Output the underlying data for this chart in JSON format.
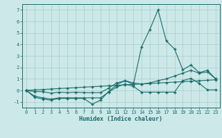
{
  "title": "",
  "xlabel": "Humidex (Indice chaleur)",
  "bg_color": "#cce8e8",
  "grid_color": "#aacccc",
  "line_color": "#1a6b6b",
  "x": [
    0,
    1,
    2,
    3,
    4,
    5,
    6,
    7,
    8,
    9,
    10,
    11,
    12,
    13,
    14,
    15,
    16,
    17,
    18,
    19,
    20,
    21,
    22,
    23
  ],
  "y_main": [
    0.0,
    -0.6,
    -0.75,
    -0.85,
    -0.7,
    -0.7,
    -0.7,
    -0.7,
    -1.2,
    -0.85,
    -0.1,
    0.5,
    0.85,
    0.5,
    3.8,
    5.3,
    7.0,
    4.3,
    3.6,
    1.8,
    2.2,
    1.55,
    1.75,
    1.0
  ],
  "y_line2": [
    0.0,
    -0.5,
    -0.65,
    -0.75,
    -0.65,
    -0.65,
    -0.65,
    -0.65,
    -0.65,
    -0.65,
    -0.15,
    0.3,
    0.55,
    0.35,
    -0.15,
    -0.15,
    -0.15,
    -0.15,
    -0.15,
    0.85,
    1.05,
    0.6,
    0.05,
    0.05
  ],
  "y_line3": [
    0.0,
    -0.1,
    -0.1,
    -0.25,
    -0.15,
    -0.2,
    -0.15,
    -0.2,
    -0.2,
    -0.2,
    0.2,
    0.65,
    0.85,
    0.65,
    0.55,
    0.65,
    0.85,
    1.0,
    1.25,
    1.5,
    1.75,
    1.5,
    1.6,
    1.0
  ],
  "y_trend": [
    0.0,
    0.04,
    0.08,
    0.12,
    0.16,
    0.2,
    0.24,
    0.28,
    0.32,
    0.36,
    0.4,
    0.44,
    0.48,
    0.52,
    0.56,
    0.6,
    0.64,
    0.68,
    0.72,
    0.76,
    0.8,
    0.84,
    0.88,
    0.92
  ],
  "ylim": [
    -1.5,
    7.5
  ],
  "xlim": [
    -0.5,
    23.5
  ],
  "yticks": [
    -1,
    0,
    1,
    2,
    3,
    4,
    5,
    6,
    7
  ]
}
